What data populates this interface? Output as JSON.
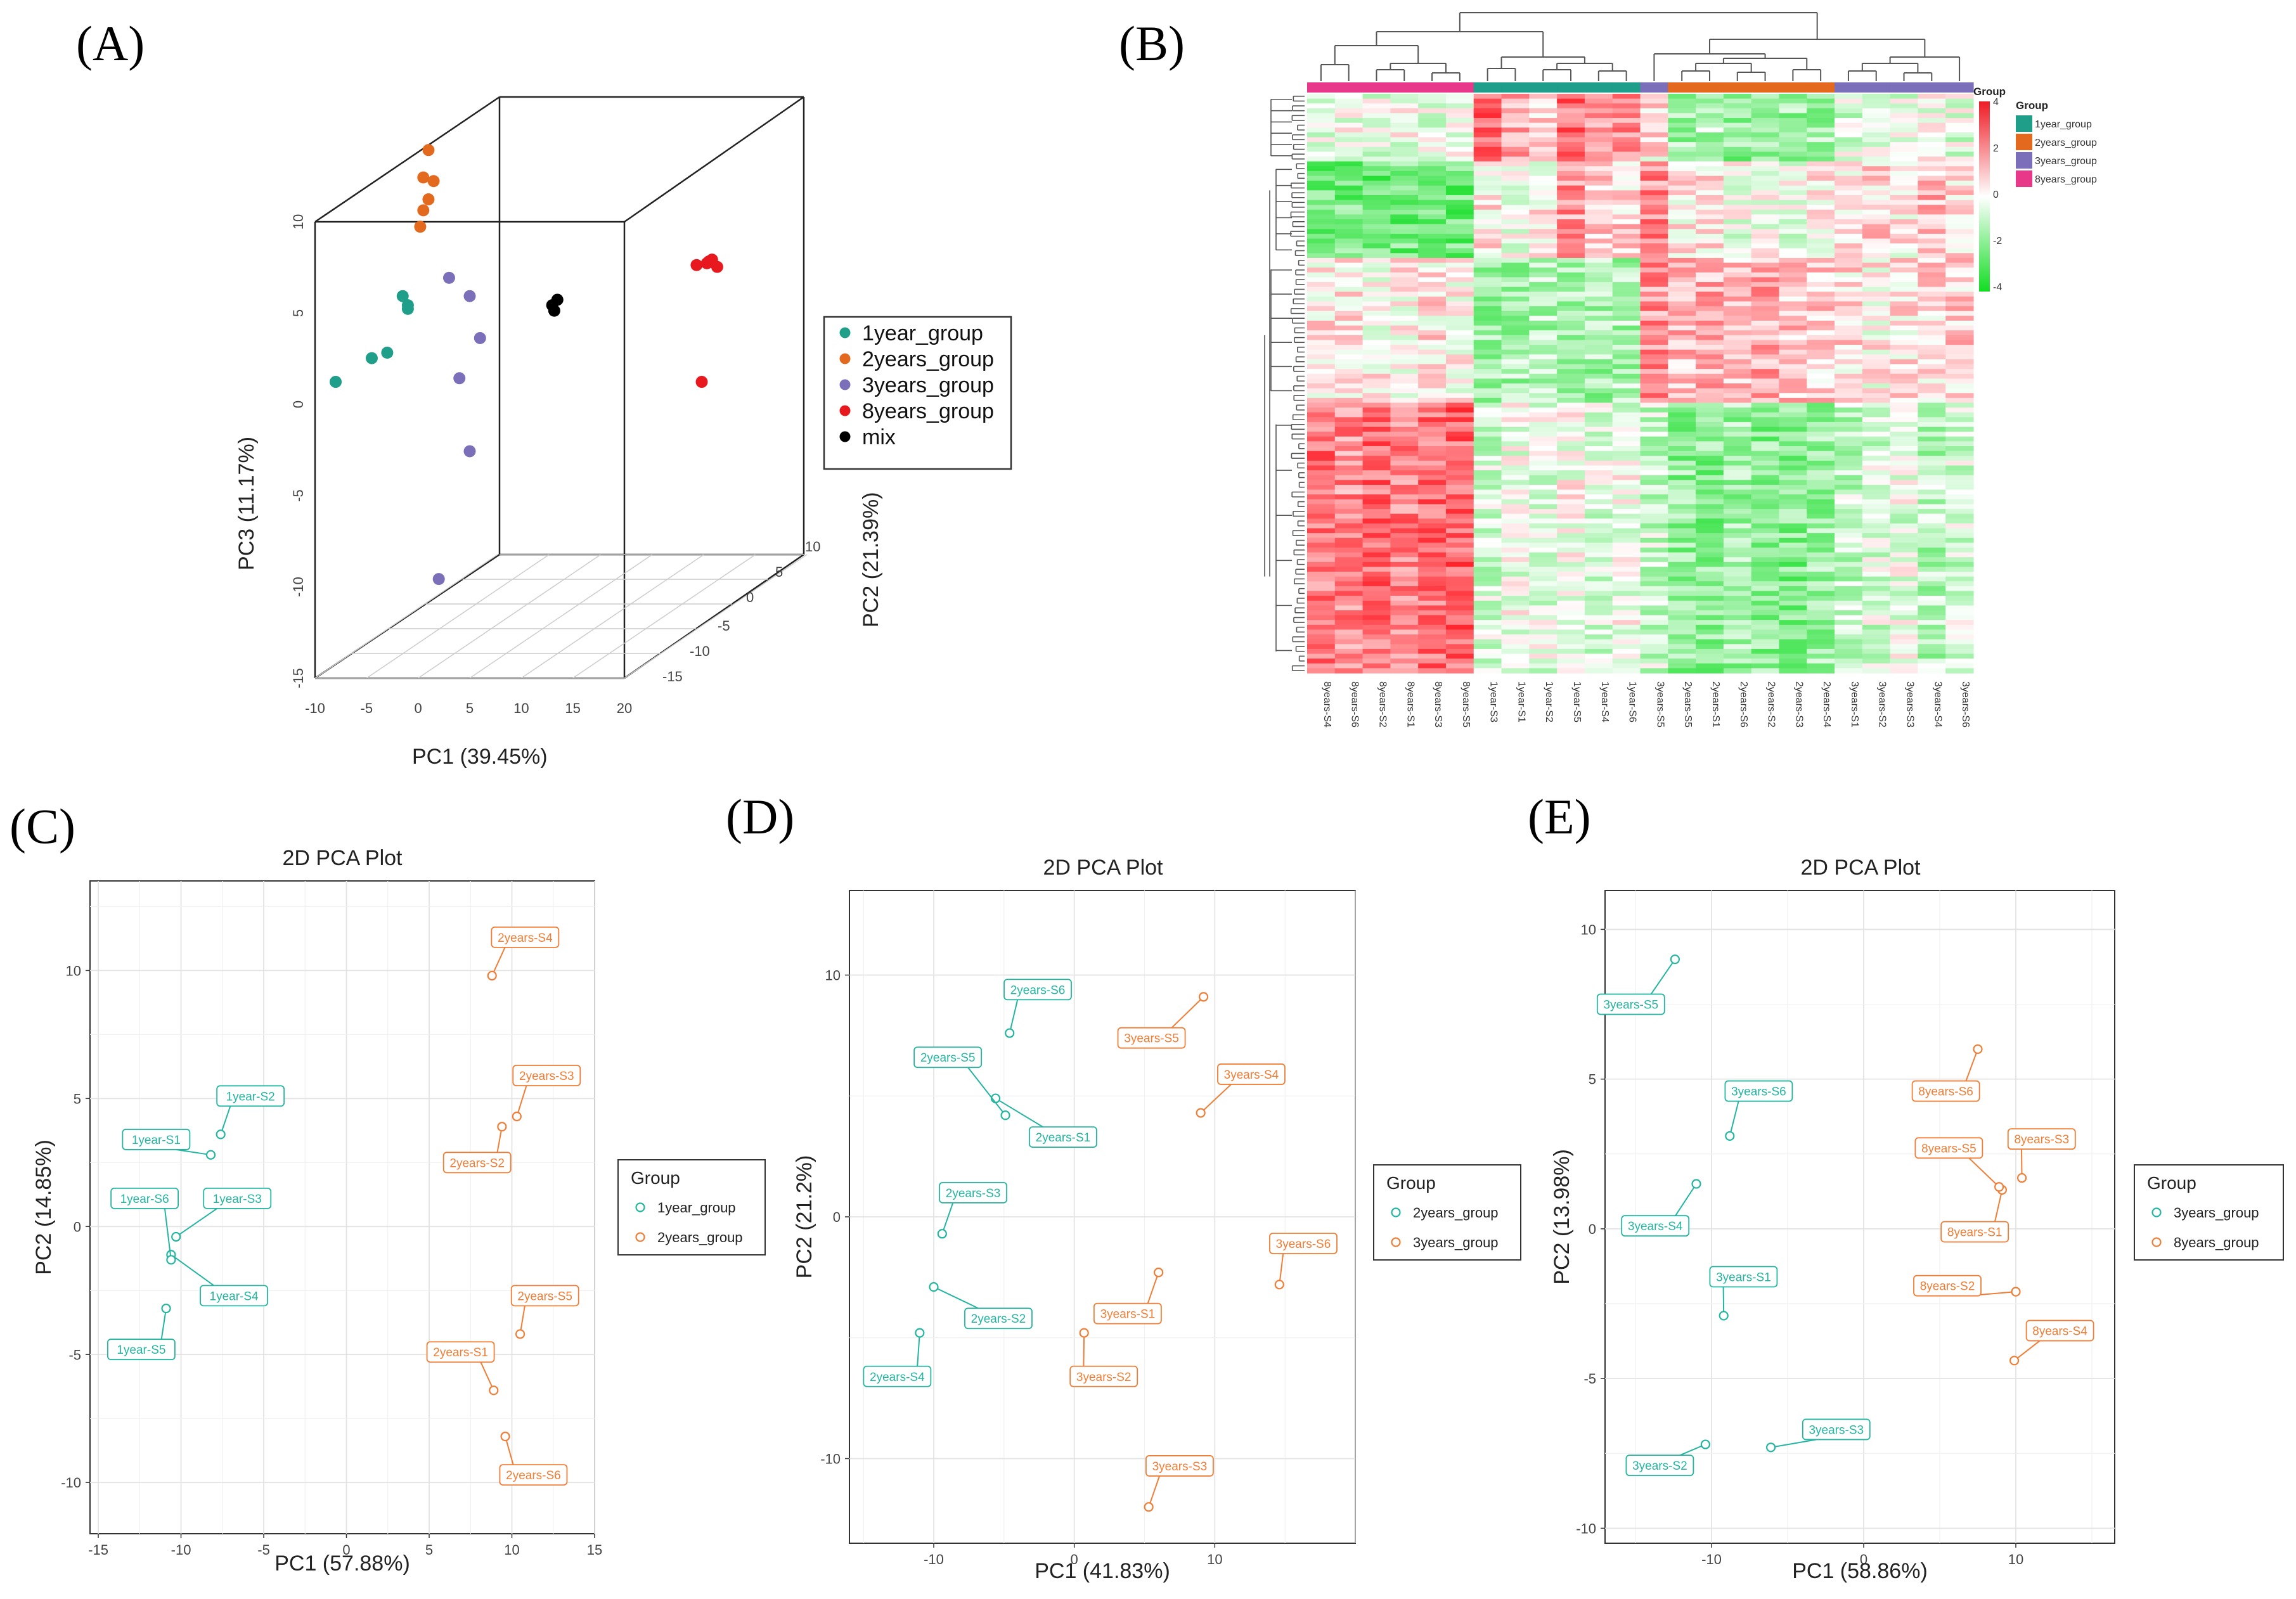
{
  "colors": {
    "teal": "#1f9e8a",
    "orange": "#e3691e",
    "purple": "#7a6fb8",
    "red": "#e8191e",
    "black": "#000000",
    "pink": "#e8388a",
    "pca_teal": "#23b5a0",
    "pca_orange": "#f07d35",
    "hm_high": "#ee1c25",
    "hm_low": "#11dd22",
    "hm_mid": "#ffffff"
  },
  "panels": {
    "A": "(A)",
    "B": "(B)",
    "C": "(C)",
    "D": "(D)",
    "E": "(E)"
  },
  "chart_data": [
    {
      "id": "A",
      "type": "scatter",
      "title": "",
      "xlabel": "PC1 (39.45%)",
      "ylabel": "PC3 (11.17%)",
      "zlabel": "PC2 (21.39%)",
      "x_ticks": [
        "-10",
        "-5",
        "0",
        "5",
        "10",
        "15",
        "20"
      ],
      "y_ticks": [
        "-15",
        "-10",
        "-5",
        "0",
        "5",
        "10"
      ],
      "z_ticks": [
        "-15",
        "-10",
        "-5",
        "0",
        "5",
        "10"
      ],
      "legend": [
        {
          "label": "1year_group",
          "color": "#1f9e8a"
        },
        {
          "label": "2years_group",
          "color": "#e3691e"
        },
        {
          "label": "3years_group",
          "color": "#7a6fb8"
        },
        {
          "label": "8years_group",
          "color": "#e8191e"
        },
        {
          "label": "mix",
          "color": "#000000"
        }
      ],
      "series": [
        {
          "name": "1year_group",
          "points": [
            [
              -8,
              -1.2
            ],
            [
              -4.5,
              0.1
            ],
            [
              -3,
              0.4
            ],
            [
              -1.5,
              3.5
            ],
            [
              -1,
              3
            ],
            [
              -1,
              2.8
            ]
          ]
        },
        {
          "name": "2years_group",
          "points": [
            [
              1,
              11.5
            ],
            [
              0.5,
              10
            ],
            [
              1.5,
              9.8
            ],
            [
              0.5,
              8.2
            ],
            [
              1,
              8.8
            ],
            [
              0.2,
              7.3
            ]
          ]
        },
        {
          "name": "3years_group",
          "points": [
            [
              3,
              4.5
            ],
            [
              5,
              3.5
            ],
            [
              6,
              1.2
            ],
            [
              4,
              -1
            ],
            [
              5,
              -5
            ],
            [
              2,
              -12
            ]
          ]
        },
        {
          "name": "8years_group",
          "points": [
            [
              28,
              5.3
            ],
            [
              28.5,
              5.5
            ],
            [
              29,
              5.1
            ],
            [
              27,
              5.2
            ],
            [
              27.5,
              -1.2
            ],
            [
              28.2,
              5.4
            ]
          ]
        },
        {
          "name": "mix",
          "points": [
            [
              13,
              3
            ],
            [
              13.5,
              3.3
            ],
            [
              13.2,
              2.7
            ]
          ]
        }
      ]
    },
    {
      "id": "B",
      "type": "heatmap",
      "legend_title": "Group",
      "group_legend": [
        {
          "label": "1year_group",
          "color": "#1f9e8a"
        },
        {
          "label": "2years_group",
          "color": "#e3691e"
        },
        {
          "label": "3years_group",
          "color": "#7a6fb8"
        },
        {
          "label": "8years_group",
          "color": "#e8388a"
        }
      ],
      "color_scale": [
        "4",
        "2",
        "0",
        "-2",
        "-4"
      ],
      "columns": [
        "8years-S4",
        "8years-S6",
        "8years-S2",
        "8years-S1",
        "8years-S3",
        "8years-S5",
        "1year-S3",
        "1year-S1",
        "1year-S2",
        "1year-S5",
        "1year-S4",
        "1year-S6",
        "3years-S5",
        "2years-S5",
        "2years-S1",
        "2years-S6",
        "2years-S2",
        "2years-S3",
        "2years-S4",
        "3years-S1",
        "3years-S2",
        "3years-S3",
        "3years-S4",
        "3years-S6"
      ],
      "column_groups": [
        "8years_group",
        "8years_group",
        "8years_group",
        "8years_group",
        "8years_group",
        "8years_group",
        "1year_group",
        "1year_group",
        "1year_group",
        "1year_group",
        "1year_group",
        "1year_group",
        "3years_group",
        "2years_group",
        "2years_group",
        "2years_group",
        "2years_group",
        "2years_group",
        "2years_group",
        "3years_group",
        "3years_group",
        "3years_group",
        "3years_group",
        "3years_group"
      ],
      "blocks": [
        {
          "rows": 14,
          "values": [
            -0.3,
            -0.2,
            -0.5,
            -0.2,
            -0.4,
            -0.3,
            2.8,
            1.5,
            1.0,
            2.5,
            2.0,
            2.2,
            0.5,
            -1.5,
            -1.2,
            -1.8,
            -1.5,
            -1.6,
            -1.4,
            -0.6,
            -0.3,
            -0.4,
            -0.2,
            -0.5
          ]
        },
        {
          "rows": 20,
          "values": [
            -2.4,
            -2.2,
            -2.5,
            -2.3,
            -2.6,
            -2.4,
            0.5,
            -0.3,
            0.2,
            1.8,
            1.2,
            0.8,
            2.0,
            0.3,
            0.5,
            -0.2,
            0.0,
            -0.3,
            0.4,
            0.5,
            0.8,
            0.3,
            1.2,
            0.6
          ]
        },
        {
          "rows": 30,
          "values": [
            0.4,
            0.6,
            0.2,
            0.3,
            0.5,
            0.1,
            -1.6,
            -1.4,
            -1.3,
            -1.2,
            -1.5,
            -1.3,
            1.8,
            1.2,
            1.4,
            1.0,
            1.5,
            1.1,
            0.9,
            0.6,
            0.2,
            0.5,
            0.7,
            0.8
          ]
        },
        {
          "rows": 56,
          "values": [
            2.4,
            2.0,
            2.6,
            2.2,
            2.5,
            2.7,
            -0.8,
            -0.2,
            -0.4,
            0.0,
            -0.6,
            -0.2,
            -0.8,
            -1.8,
            -2.0,
            -1.6,
            -1.9,
            -2.1,
            -1.7,
            -1.0,
            -0.6,
            -0.4,
            -1.2,
            -0.7
          ]
        }
      ]
    },
    {
      "id": "C",
      "type": "scatter",
      "title": "2D PCA Plot",
      "xlabel": "PC1 (57.88%)",
      "ylabel": "PC2 (14.85%)",
      "xlim": [
        -15.5,
        15
      ],
      "ylim": [
        -12,
        13.5
      ],
      "x_ticks": [
        -15,
        -10,
        -5,
        0,
        5,
        10,
        15
      ],
      "y_ticks": [
        -10,
        -5,
        0,
        5,
        10
      ],
      "x_tick_labels": [
        "-15",
        "-10",
        "-5",
        "0",
        "5",
        "10",
        "15"
      ],
      "y_tick_labels": [
        "-10",
        "-5",
        "0",
        "5",
        "10"
      ],
      "legend_title": "Group",
      "legend": [
        {
          "label": "1year_group",
          "color": "#23b5a0"
        },
        {
          "label": "2years_group",
          "color": "#f07d35"
        }
      ],
      "series": [
        {
          "name": "1year_group",
          "color": "#23b5a0",
          "points": [
            {
              "x": -8.2,
              "y": 2.8,
              "label": "1year-S1",
              "lx": -11.5,
              "ly": 3.4
            },
            {
              "x": -7.6,
              "y": 3.6,
              "label": "1year-S2",
              "lx": -5.8,
              "ly": 5.1
            },
            {
              "x": -10.3,
              "y": -0.4,
              "label": "1year-S3",
              "lx": -6.6,
              "ly": 1.1
            },
            {
              "x": -10.6,
              "y": -1.1,
              "label": "1year-S4",
              "lx": -6.8,
              "ly": -2.7
            },
            {
              "x": -10.9,
              "y": -3.2,
              "label": "1year-S5",
              "lx": -12.4,
              "ly": -4.8
            },
            {
              "x": -10.6,
              "y": -1.3,
              "label": "1year-S6",
              "lx": -12.2,
              "ly": 1.1
            }
          ]
        },
        {
          "name": "2years_group",
          "color": "#f07d35",
          "points": [
            {
              "x": 8.9,
              "y": -6.4,
              "label": "2years-S1",
              "lx": 6.9,
              "ly": -4.9
            },
            {
              "x": 9.4,
              "y": 3.9,
              "label": "2years-S2",
              "lx": 7.9,
              "ly": 2.5
            },
            {
              "x": 10.3,
              "y": 4.3,
              "label": "2years-S3",
              "lx": 12.1,
              "ly": 5.9
            },
            {
              "x": 8.8,
              "y": 9.8,
              "label": "2years-S4",
              "lx": 10.8,
              "ly": 11.3
            },
            {
              "x": 10.5,
              "y": -4.2,
              "label": "2years-S5",
              "lx": 12.0,
              "ly": -2.7
            },
            {
              "x": 9.6,
              "y": -8.2,
              "label": "2years-S6",
              "lx": 11.3,
              "ly": -9.7
            }
          ]
        }
      ]
    },
    {
      "id": "D",
      "type": "scatter",
      "title": "2D PCA Plot",
      "xlabel": "PC1 (41.83%)",
      "ylabel": "PC2 (21.2%)",
      "xlim": [
        -16,
        20
      ],
      "ylim": [
        -13.5,
        13.5
      ],
      "x_ticks": [
        -10,
        0,
        10
      ],
      "y_ticks": [
        -10,
        0,
        10
      ],
      "x_tick_labels": [
        "-10",
        "0",
        "10"
      ],
      "y_tick_labels": [
        "-10",
        "0",
        "10"
      ],
      "legend_title": "Group",
      "legend": [
        {
          "label": "2years_group",
          "color": "#23b5a0"
        },
        {
          "label": "3years_group",
          "color": "#f07d35"
        }
      ],
      "series": [
        {
          "name": "2years_group",
          "color": "#23b5a0",
          "points": [
            {
              "x": -5.6,
              "y": 4.9,
              "label": "2years-S1",
              "lx": -0.8,
              "ly": 3.3
            },
            {
              "x": -10.0,
              "y": -2.9,
              "label": "2years-S2",
              "lx": -5.4,
              "ly": -4.2
            },
            {
              "x": -9.4,
              "y": -0.7,
              "label": "2years-S3",
              "lx": -7.2,
              "ly": 1.0
            },
            {
              "x": -11.0,
              "y": -4.8,
              "label": "2years-S4",
              "lx": -12.6,
              "ly": -6.6
            },
            {
              "x": -4.9,
              "y": 4.2,
              "label": "2years-S5",
              "lx": -9.0,
              "ly": 6.6
            },
            {
              "x": -4.6,
              "y": 7.6,
              "label": "2years-S6",
              "lx": -2.6,
              "ly": 9.4
            }
          ]
        },
        {
          "name": "3years_group",
          "color": "#f07d35",
          "points": [
            {
              "x": 6.0,
              "y": -2.3,
              "label": "3years-S1",
              "lx": 3.8,
              "ly": -4.0
            },
            {
              "x": 0.7,
              "y": -4.8,
              "label": "3years-S2",
              "lx": 2.1,
              "ly": -6.6
            },
            {
              "x": 5.3,
              "y": -12.0,
              "label": "3years-S3",
              "lx": 7.5,
              "ly": -10.3
            },
            {
              "x": 9.0,
              "y": 4.3,
              "label": "3years-S4",
              "lx": 12.6,
              "ly": 5.9
            },
            {
              "x": 9.2,
              "y": 9.1,
              "label": "3years-S5",
              "lx": 5.5,
              "ly": 7.4
            },
            {
              "x": 14.6,
              "y": -2.8,
              "label": "3years-S6",
              "lx": 16.3,
              "ly": -1.1
            }
          ]
        }
      ]
    },
    {
      "id": "E",
      "type": "scatter",
      "title": "2D PCA Plot",
      "xlabel": "PC1 (58.86%)",
      "ylabel": "PC2 (13.98%)",
      "xlim": [
        -17,
        16.5
      ],
      "ylim": [
        -10.5,
        11.3
      ],
      "x_ticks": [
        -10,
        0,
        10
      ],
      "y_ticks": [
        -10,
        -5,
        0,
        5,
        10
      ],
      "x_tick_labels": [
        "-10",
        "0",
        "10"
      ],
      "y_tick_labels": [
        "-10",
        "-5",
        "0",
        "5",
        "10"
      ],
      "legend_title": "Group",
      "legend": [
        {
          "label": "3years_group",
          "color": "#23b5a0"
        },
        {
          "label": "8years_group",
          "color": "#f07d35"
        }
      ],
      "series": [
        {
          "name": "3years_group",
          "color": "#23b5a0",
          "points": [
            {
              "x": -9.2,
              "y": -2.9,
              "label": "3years-S1",
              "lx": -7.9,
              "ly": -1.6
            },
            {
              "x": -10.4,
              "y": -7.2,
              "label": "3years-S2",
              "lx": -13.4,
              "ly": -7.9
            },
            {
              "x": -6.1,
              "y": -7.3,
              "label": "3years-S3",
              "lx": -1.8,
              "ly": -6.7
            },
            {
              "x": -11.0,
              "y": 1.5,
              "label": "3years-S4",
              "lx": -13.7,
              "ly": 0.1
            },
            {
              "x": -12.4,
              "y": 9.0,
              "label": "3years-S5",
              "lx": -15.3,
              "ly": 7.5
            },
            {
              "x": -8.8,
              "y": 3.1,
              "label": "3years-S6",
              "lx": -6.9,
              "ly": 4.6
            }
          ]
        },
        {
          "name": "8years_group",
          "color": "#f07d35",
          "points": [
            {
              "x": 9.1,
              "y": 1.3,
              "label": "8years-S1",
              "lx": 7.3,
              "ly": -0.1
            },
            {
              "x": 10.0,
              "y": -2.1,
              "label": "8years-S2",
              "lx": 5.5,
              "ly": -1.9
            },
            {
              "x": 10.4,
              "y": 1.7,
              "label": "8years-S3",
              "lx": 11.7,
              "ly": 3.0
            },
            {
              "x": 9.9,
              "y": -4.4,
              "label": "8years-S4",
              "lx": 12.9,
              "ly": -3.4
            },
            {
              "x": 8.9,
              "y": 1.4,
              "label": "8years-S5",
              "lx": 5.6,
              "ly": 2.7
            },
            {
              "x": 7.5,
              "y": 6.0,
              "label": "8years-S6",
              "lx": 5.4,
              "ly": 4.6
            }
          ]
        }
      ]
    }
  ]
}
